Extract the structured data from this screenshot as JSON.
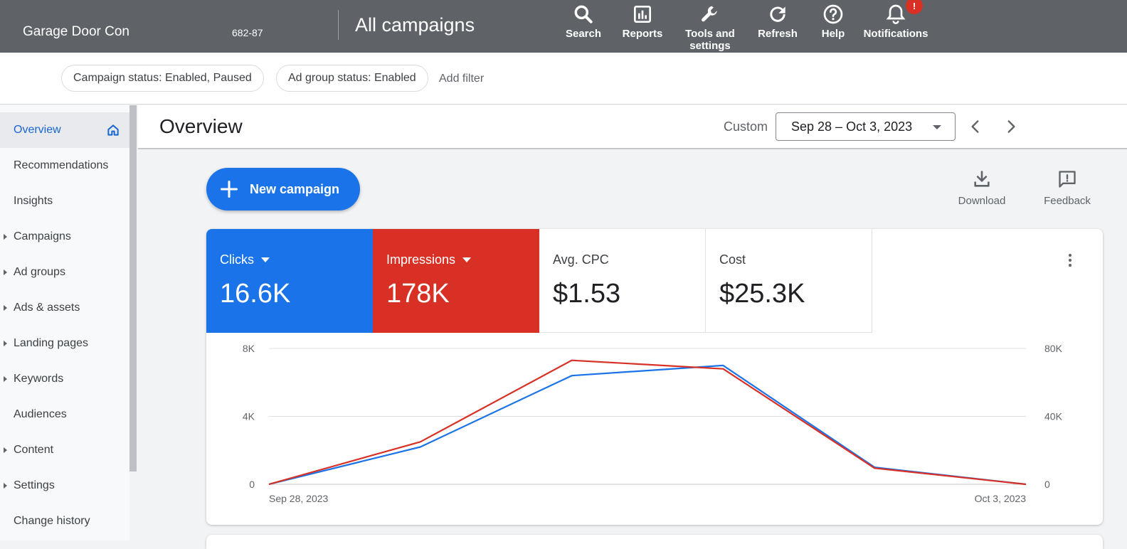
{
  "topbar": {
    "account_name": "Garage Door Con",
    "account_id": "682-87",
    "title": "All campaigns",
    "tools": [
      {
        "label": "Search",
        "icon": "search-icon"
      },
      {
        "label": "Reports",
        "icon": "reports-icon"
      },
      {
        "label": "Tools and\nsettings",
        "icon": "wrench-icon"
      },
      {
        "label": "Refresh",
        "icon": "refresh-icon"
      },
      {
        "label": "Help",
        "icon": "help-icon"
      },
      {
        "label": "Notifications",
        "icon": "bell-icon"
      }
    ],
    "notification_badge": "!"
  },
  "filters": {
    "chips": [
      "Campaign status: Enabled, Paused",
      "Ad group status: Enabled"
    ],
    "add_filter": "Add filter"
  },
  "sidebar": {
    "items": [
      {
        "label": "Overview",
        "expandable": false,
        "active": true
      },
      {
        "label": "Recommendations",
        "expandable": false
      },
      {
        "label": "Insights",
        "expandable": false
      },
      {
        "label": "Campaigns",
        "expandable": true
      },
      {
        "label": "Ad groups",
        "expandable": true
      },
      {
        "label": "Ads & assets",
        "expandable": true
      },
      {
        "label": "Landing pages",
        "expandable": true
      },
      {
        "label": "Keywords",
        "expandable": true
      },
      {
        "label": "Audiences",
        "expandable": false
      },
      {
        "label": "Content",
        "expandable": true
      },
      {
        "label": "Settings",
        "expandable": true
      },
      {
        "label": "Change history",
        "expandable": false
      }
    ]
  },
  "overview": {
    "title": "Overview",
    "date_mode": "Custom",
    "date_range": "Sep 28 – Oct 3, 2023"
  },
  "actions": {
    "new_campaign": "New campaign",
    "download": "Download",
    "feedback": "Feedback"
  },
  "metrics": [
    {
      "name": "Clicks",
      "value": "16.6K",
      "color": "#1a73e8",
      "dropdown": true
    },
    {
      "name": "Impressions",
      "value": "178K",
      "color": "#d93025",
      "dropdown": true
    },
    {
      "name": "Avg. CPC",
      "value": "$1.53",
      "dropdown": false
    },
    {
      "name": "Cost",
      "value": "$25.3K",
      "dropdown": false
    }
  ],
  "colors": {
    "clicks": "#1a73e8",
    "impressions": "#d93025",
    "topbar": "#5f6368"
  },
  "chart_data": {
    "type": "line",
    "x": [
      "Sep 28, 2023",
      "Sep 29, 2023",
      "Sep 30, 2023",
      "Oct 1, 2023",
      "Oct 2, 2023",
      "Oct 3, 2023"
    ],
    "x_tick_labels": [
      "Sep 28, 2023",
      "Oct 3, 2023"
    ],
    "series": [
      {
        "name": "Clicks",
        "axis": "left",
        "color": "#1a73e8",
        "values": [
          0,
          2200,
          6400,
          7000,
          1000,
          0
        ]
      },
      {
        "name": "Impressions",
        "axis": "right",
        "color": "#d93025",
        "values": [
          0,
          25000,
          73000,
          68000,
          9500,
          0
        ]
      }
    ],
    "y_left": {
      "ticks": [
        "0",
        "4K",
        "8K"
      ],
      "values": [
        0,
        4000,
        8000
      ],
      "lim": [
        0,
        8000
      ]
    },
    "y_right": {
      "ticks": [
        "0",
        "40K",
        "80K"
      ],
      "values": [
        0,
        40000,
        80000
      ],
      "lim": [
        0,
        80000
      ]
    },
    "grid": true
  }
}
